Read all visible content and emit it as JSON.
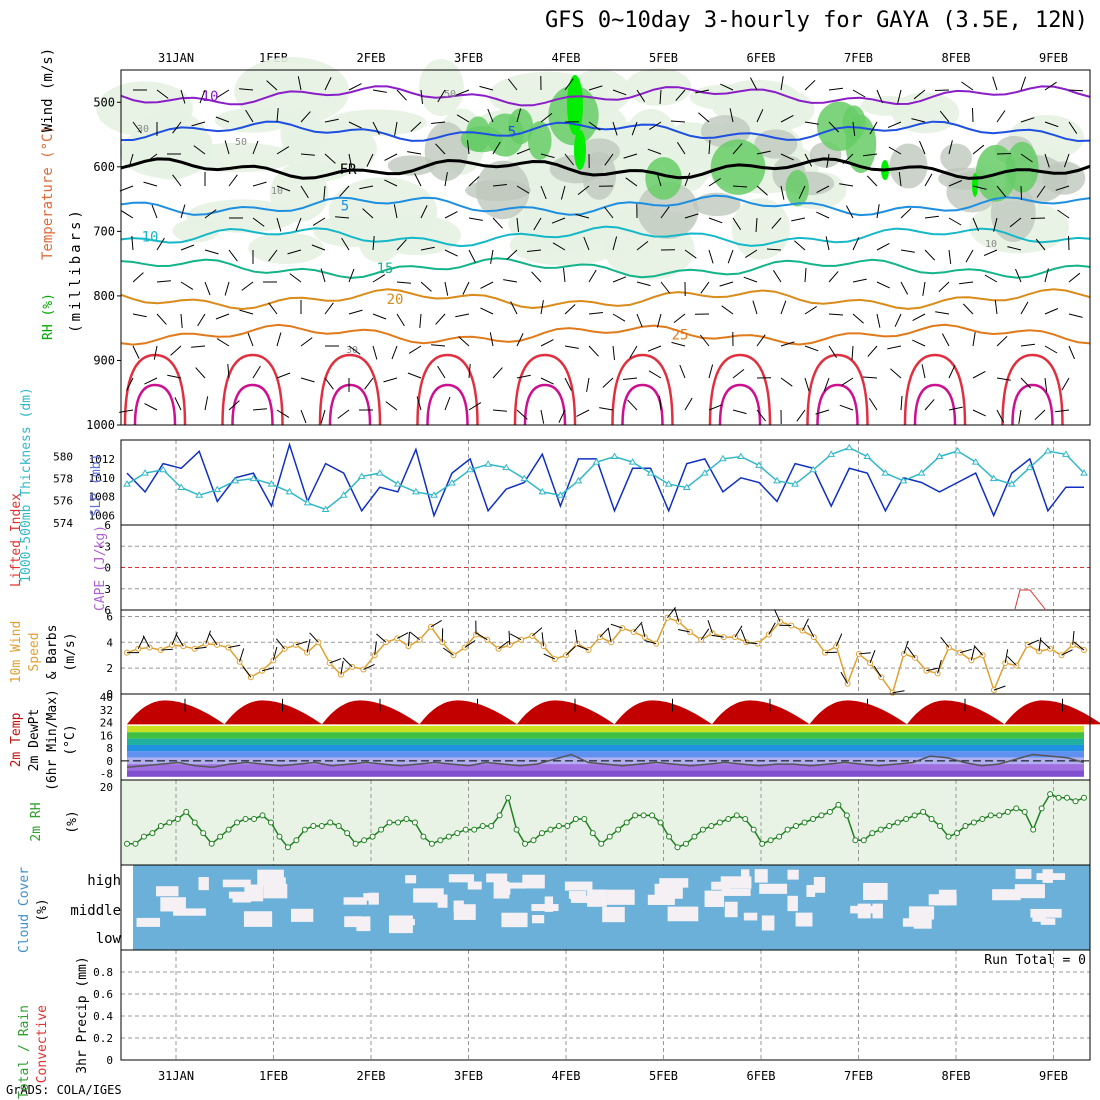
{
  "title": "GFS 0~10day 3-hourly for GAYA (3.5E, 12N)",
  "footer": "GrADS: COLA/IGES",
  "dates": [
    "31JAN",
    "1FEB",
    "2FEB",
    "3FEB",
    "4FEB",
    "5FEB",
    "6FEB",
    "7FEB",
    "8FEB",
    "9FEB"
  ],
  "colors": {
    "axis": "#000000",
    "grid": "#999999",
    "rh_light": "#e6f2e3",
    "rh_mid": "#bfc8bd",
    "rh_green": "#66cc66",
    "rh_bright": "#00ee00"
  },
  "chart_data": [
    {
      "type": "heatmap",
      "id": "upper-air",
      "ylabel_parts": [
        "Wind (m/s)",
        "Temperature (°C)",
        "RH (%)",
        "(millibars)"
      ],
      "ylim": [
        1000,
        450
      ],
      "y_ticks": [
        500,
        600,
        700,
        800,
        900,
        1000
      ],
      "temperature_contours": [
        {
          "label": "10",
          "value": -10,
          "color": "#8a1fc7",
          "level_mb": 490
        },
        {
          "label": "5",
          "value": -5,
          "color": "#1f4fe0",
          "level_mb": 545
        },
        {
          "label": "FR",
          "value": 0,
          "color": "#000000",
          "level_mb": 603
        },
        {
          "label": "5",
          "value": 5,
          "color": "#1e8fe0",
          "level_mb": 660
        },
        {
          "label": "10",
          "value": 10,
          "color": "#15b8c8",
          "level_mb": 708
        },
        {
          "label": "15",
          "value": 15,
          "color": "#14b48a",
          "level_mb": 757
        },
        {
          "label": "20",
          "value": 20,
          "color": "#d98c1a",
          "level_mb": 805
        },
        {
          "label": "25",
          "value": 25,
          "color": "#e07a1a",
          "level_mb": 860
        }
      ],
      "rh_contour_labels": [
        "50",
        "30",
        "50",
        "10",
        "30",
        "10"
      ]
    },
    {
      "type": "line",
      "id": "slp-thickness",
      "series": [
        {
          "name": "SLP (mb)",
          "axis": "right",
          "ticks": [
            1006,
            1008,
            1010,
            1012
          ]
        },
        {
          "name": "Thickness 1000-500mb (dm)",
          "axis": "left",
          "ticks": [
            574,
            576,
            578,
            580
          ]
        }
      ],
      "ylabel": "SLP (mb)",
      "ylabel2": "1000-500mb Thickness (dm)",
      "slp_values": [
        1010.5,
        1008.5,
        1011.5,
        1011,
        1012.8,
        1007.5,
        1010,
        1010.5,
        1007,
        1013.5,
        1007.5,
        1011.5,
        1010.5,
        1006.5,
        1009,
        1008.5,
        1013,
        1006,
        1010.5,
        1012,
        1006.5,
        1008.8,
        1009.5,
        1012.5,
        1007,
        1012,
        1012,
        1006.5,
        1011,
        1011,
        1006.5,
        1011.5,
        1012,
        1008.5,
        1010,
        1009.5,
        1007.5,
        1011.5,
        1011,
        1007,
        1011,
        1010.5,
        1006.5,
        1010,
        1009.5,
        1008.5,
        1009.5,
        1010.5,
        1006,
        1010.5,
        1012,
        1006.5,
        1009,
        1009
      ],
      "thickness_values": [
        577.5,
        578.5,
        578.8,
        577.2,
        576.5,
        577,
        577.8,
        578,
        577.5,
        576.8,
        575.8,
        575.2,
        576.5,
        578.2,
        578.5,
        577.5,
        576.8,
        576.5,
        577.6,
        578.8,
        579.3,
        579,
        578,
        576.8,
        576.5,
        577.8,
        579.5,
        580,
        579.5,
        578.5,
        577.5,
        577.2,
        578.5,
        579.8,
        580,
        579.2,
        577.8,
        577.5,
        578.8,
        580.2,
        580.8,
        580,
        578.5,
        577.8,
        578.5,
        580,
        580.5,
        579.5,
        578,
        577.5,
        579,
        580.5,
        580.2,
        578.5
      ],
      "ylim": [
        1005,
        1014
      ]
    },
    {
      "type": "line",
      "id": "cape-li",
      "ylabel": "CAPE (J/kg)",
      "ylabel2": "Lifted Index",
      "y_ticks": [
        "-3",
        "0",
        "3",
        "6"
      ],
      "y_tick_top": "6",
      "ylim": [
        -6,
        6
      ]
    },
    {
      "type": "line",
      "id": "wind10m",
      "ylabel_parts": [
        "10m Wind",
        "Speed",
        "& Barbs",
        "(m/s)"
      ],
      "y_ticks": [
        0,
        2,
        4,
        6
      ],
      "ylim": [
        0,
        6.5
      ],
      "values": [
        3.2,
        3.5,
        3.6,
        3.4,
        3.8,
        3.7,
        3.5,
        3.9,
        3.8,
        3.6,
        2.5,
        1.3,
        1.8,
        2.6,
        3.5,
        3.8,
        3.2,
        4.0,
        2.4,
        1.5,
        2.1,
        1.9,
        3.0,
        4.0,
        4.3,
        3.7,
        4.2,
        5.2,
        4.0,
        3.0,
        3.6,
        4.6,
        4.2,
        3.5,
        3.8,
        4.2,
        4.5,
        3.7,
        2.7,
        3.0,
        3.9,
        3.4,
        4.4,
        4.0,
        5.1,
        4.8,
        4.4,
        3.9,
        5.9,
        5.6,
        4.8,
        4.2,
        4.7,
        4.4,
        4.4,
        4.0,
        3.9,
        4.6,
        5.6,
        5.3,
        4.9,
        4.4,
        3.2,
        3.7,
        0.8,
        3.1,
        2.4,
        1.3,
        0.1,
        3.1,
        2.8,
        1.8,
        1.6,
        3.6,
        3.2,
        2.6,
        3.0,
        0.3,
        2.4,
        2.2,
        3.8,
        3.3,
        3.5,
        3.0,
        3.8,
        3.4
      ]
    },
    {
      "type": "area",
      "id": "temp2m",
      "ylabel_parts": [
        "2m Temp",
        "2m DewPt",
        "(6hr Min/Max)",
        "(°C)"
      ],
      "y_ticks": [
        -8,
        0,
        8,
        16,
        24,
        32,
        40
      ],
      "ylim": [
        -12,
        42
      ],
      "day_max": 38,
      "night_min": 23,
      "dewpoint": [
        -4,
        -3,
        -2,
        -1,
        -3,
        -4,
        -2,
        -1,
        -2,
        -3,
        -2,
        -1,
        -3,
        -2,
        -1,
        -2,
        -3,
        -2,
        -1,
        -2,
        -3,
        -1,
        -2,
        -3,
        -2,
        1,
        4,
        -1,
        -2,
        -3,
        -2,
        -1,
        -2,
        -3,
        -2,
        -1,
        -2,
        -3,
        -2,
        -2,
        -3,
        -2,
        -1,
        -2,
        -3,
        -2,
        -1,
        3,
        2,
        -1,
        -3,
        -2,
        1,
        4,
        3,
        2,
        -1
      ]
    },
    {
      "type": "line",
      "id": "rh2m",
      "ylabel": "2m RH",
      "ylabel2": "(%)",
      "y_ticks": [
        20
      ],
      "ylim": [
        -2,
        22
      ],
      "values": [
        4,
        4,
        6,
        7,
        9,
        10,
        11,
        13,
        10,
        7,
        4,
        6,
        8,
        10,
        11,
        11,
        12,
        10,
        6,
        3,
        5,
        8,
        9,
        9,
        10,
        9,
        7,
        4,
        5,
        6,
        8,
        10,
        10,
        11,
        10,
        6,
        4,
        5,
        6,
        7,
        8,
        8,
        9,
        9,
        12,
        17,
        8,
        4,
        5,
        7,
        8,
        9,
        9,
        11,
        11,
        7,
        4,
        6,
        8,
        10,
        12,
        12,
        12,
        10,
        6,
        3,
        4,
        6,
        8,
        9,
        10,
        11,
        12,
        11,
        8,
        4,
        5,
        6,
        8,
        9,
        10,
        11,
        12,
        13,
        15,
        12,
        5,
        5,
        7,
        8,
        9,
        10,
        11,
        12,
        13,
        11,
        9,
        6,
        7,
        9,
        10,
        11,
        12,
        12,
        13,
        14,
        13,
        8,
        14,
        18,
        17,
        17,
        16,
        17
      ]
    },
    {
      "type": "heatmap",
      "id": "cloud",
      "ylabel_parts": [
        "Cloud Cover",
        "(%)"
      ],
      "y_ticks": [
        "high",
        "middle",
        "low"
      ]
    },
    {
      "type": "bar",
      "id": "precip",
      "ylabel_parts": [
        "3hr Precip (mm)",
        "Total / Rain",
        "Convective"
      ],
      "y_ticks": [
        0,
        0.2,
        0.4,
        0.6,
        0.8
      ],
      "ylim": [
        0,
        1
      ],
      "values": [],
      "run_total_label": "Run Total = 0"
    }
  ]
}
